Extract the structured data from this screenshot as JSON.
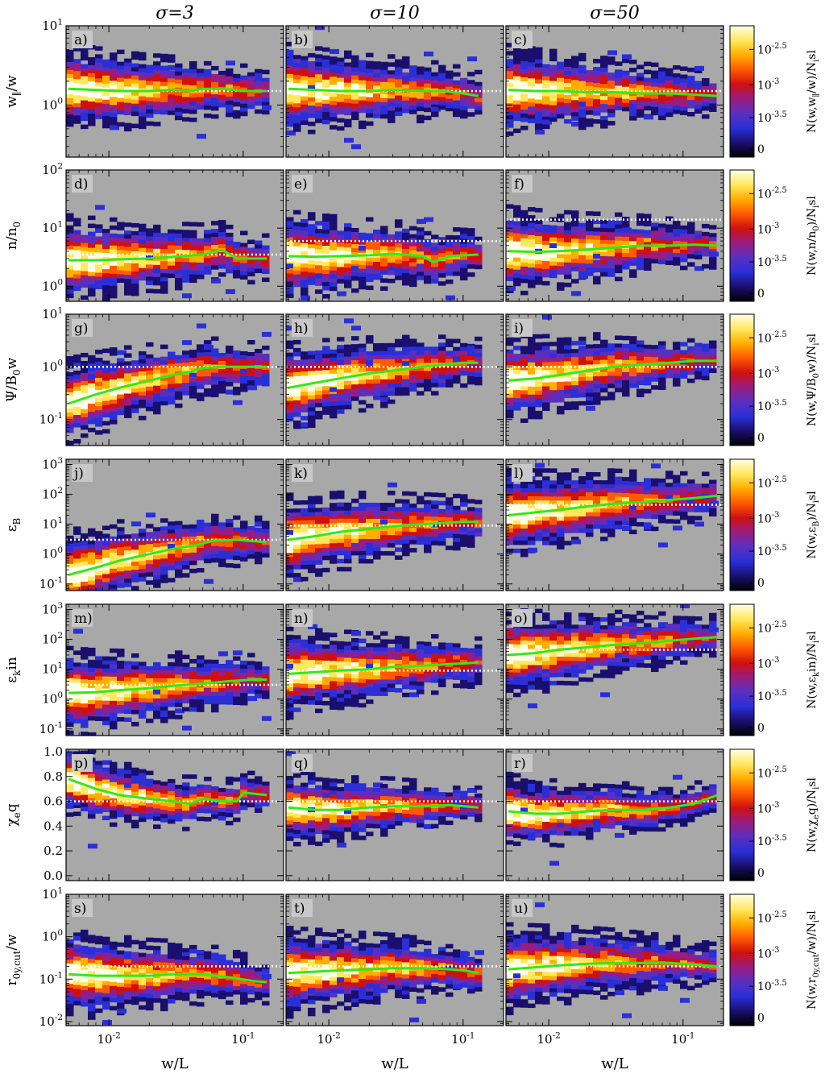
{
  "columns": [
    "σ=3",
    "σ=10",
    "σ=50"
  ],
  "xlabel": "w/L",
  "colorbar_ticks": [
    "10^{-2.5}",
    "10^{-3}",
    "10^{-3.5}",
    "0"
  ],
  "colors": {
    "panel_bg": "#a8a8a8",
    "median_line": "#33e81c",
    "reference_line": "#ffffff"
  },
  "colormap": [
    "#000000",
    "#1a0f6f",
    "#2a2fd8",
    "#5a2fbf",
    "#9a1c7e",
    "#d01010",
    "#ff5a00",
    "#ffae00",
    "#ffe860",
    "#ffffe8"
  ],
  "chart_data": {
    "type": "heatmap",
    "x_scale": "log",
    "xlim": [
      0.0048,
      0.2
    ],
    "x_ticks": [
      "10^{-2}",
      "10^{-1}"
    ],
    "rows": [
      {
        "ylabel": "w_∥/w",
        "cb_label": "N(w,w_∥/w)/N_isl",
        "y_scale": "log",
        "ylim": [
          0.22,
          10
        ],
        "y_ticks": [
          "10^{1}",
          "10^{0}"
        ],
        "panels": [
          {
            "letter": "a)",
            "ref": 1.5,
            "median": [
              [
                0.005,
                1.6
              ],
              [
                0.008,
                1.55
              ],
              [
                0.012,
                1.5
              ],
              [
                0.02,
                1.5
              ],
              [
                0.03,
                1.55
              ],
              [
                0.04,
                1.5
              ],
              [
                0.05,
                1.6
              ],
              [
                0.07,
                1.6
              ],
              [
                0.1,
                1.5
              ],
              [
                0.15,
                1.5
              ]
            ]
          },
          {
            "letter": "b)",
            "ref": 1.5,
            "median": [
              [
                0.005,
                1.6
              ],
              [
                0.008,
                1.55
              ],
              [
                0.012,
                1.5
              ],
              [
                0.02,
                1.5
              ],
              [
                0.03,
                1.55
              ],
              [
                0.05,
                1.5
              ],
              [
                0.07,
                1.5
              ],
              [
                0.1,
                1.4
              ],
              [
                0.13,
                1.3
              ]
            ]
          },
          {
            "letter": "c)",
            "ref": 1.5,
            "median": [
              [
                0.005,
                1.55
              ],
              [
                0.008,
                1.5
              ],
              [
                0.012,
                1.5
              ],
              [
                0.02,
                1.45
              ],
              [
                0.03,
                1.45
              ],
              [
                0.05,
                1.4
              ],
              [
                0.08,
                1.4
              ],
              [
                0.12,
                1.35
              ],
              [
                0.18,
                1.3
              ]
            ]
          }
        ]
      },
      {
        "ylabel": "n/n_0",
        "cb_label": "N(w,n/n_0)/N_isl",
        "y_scale": "log",
        "ylim": [
          0.55,
          100
        ],
        "y_ticks": [
          "10^{2}",
          "10^{1}",
          "10^{0}"
        ],
        "panels": [
          {
            "letter": "d)",
            "ref": 3.5,
            "median": [
              [
                0.005,
                2.8
              ],
              [
                0.008,
                2.8
              ],
              [
                0.012,
                2.9
              ],
              [
                0.02,
                3.0
              ],
              [
                0.03,
                3.2
              ],
              [
                0.05,
                3.5
              ],
              [
                0.07,
                4.2
              ],
              [
                0.09,
                3.0
              ],
              [
                0.12,
                3.0
              ],
              [
                0.15,
                3.0
              ]
            ]
          },
          {
            "letter": "e)",
            "ref": 6.0,
            "median": [
              [
                0.005,
                3.3
              ],
              [
                0.008,
                3.2
              ],
              [
                0.012,
                3.3
              ],
              [
                0.02,
                3.4
              ],
              [
                0.03,
                3.6
              ],
              [
                0.05,
                3.3
              ],
              [
                0.06,
                2.6
              ],
              [
                0.08,
                3.3
              ],
              [
                0.1,
                3.4
              ],
              [
                0.13,
                3.5
              ]
            ]
          },
          {
            "letter": "f)",
            "ref": 14.0,
            "median": [
              [
                0.005,
                4.0
              ],
              [
                0.008,
                3.9
              ],
              [
                0.012,
                4.0
              ],
              [
                0.02,
                4.3
              ],
              [
                0.03,
                4.6
              ],
              [
                0.05,
                5.0
              ],
              [
                0.08,
                5.0
              ],
              [
                0.12,
                5.2
              ],
              [
                0.18,
                5.0
              ]
            ]
          }
        ]
      },
      {
        "ylabel": "Ψ/B_0w",
        "cb_label": "N(w,Ψ/B_0w)/N_isl",
        "y_scale": "log",
        "ylim": [
          0.032,
          10
        ],
        "y_ticks": [
          "10^{1}",
          "10^{0}",
          "10^{-1}"
        ],
        "panels": [
          {
            "letter": "g)",
            "ref": 1.0,
            "median": [
              [
                0.005,
                0.2
              ],
              [
                0.008,
                0.3
              ],
              [
                0.012,
                0.4
              ],
              [
                0.02,
                0.55
              ],
              [
                0.03,
                0.7
              ],
              [
                0.04,
                0.8
              ],
              [
                0.05,
                0.95
              ],
              [
                0.07,
                1.0
              ],
              [
                0.1,
                1.0
              ],
              [
                0.15,
                1.0
              ]
            ]
          },
          {
            "letter": "h)",
            "ref": 1.0,
            "median": [
              [
                0.005,
                0.4
              ],
              [
                0.008,
                0.5
              ],
              [
                0.012,
                0.6
              ],
              [
                0.02,
                0.75
              ],
              [
                0.03,
                0.85
              ],
              [
                0.05,
                1.0
              ],
              [
                0.07,
                1.1
              ],
              [
                0.1,
                1.2
              ],
              [
                0.13,
                1.2
              ]
            ]
          },
          {
            "letter": "i)",
            "ref": 1.0,
            "median": [
              [
                0.005,
                0.55
              ],
              [
                0.008,
                0.6
              ],
              [
                0.012,
                0.7
              ],
              [
                0.02,
                0.85
              ],
              [
                0.03,
                1.0
              ],
              [
                0.05,
                1.1
              ],
              [
                0.08,
                1.2
              ],
              [
                0.12,
                1.3
              ],
              [
                0.18,
                1.3
              ]
            ]
          }
        ]
      },
      {
        "ylabel": "ε_B",
        "cb_label": "N(w,ε_B)/N_isl",
        "y_scale": "log",
        "ylim": [
          0.06,
          1500
        ],
        "y_ticks": [
          "10^{3}",
          "10^{2}",
          "10^{1}",
          "10^{0}",
          "10^{-1}"
        ],
        "panels": [
          {
            "letter": "j)",
            "ref": 3.0,
            "median": [
              [
                0.005,
                0.2
              ],
              [
                0.008,
                0.35
              ],
              [
                0.012,
                0.6
              ],
              [
                0.02,
                1.0
              ],
              [
                0.03,
                1.5
              ],
              [
                0.045,
                2.0
              ],
              [
                0.06,
                2.8
              ],
              [
                0.09,
                3.0
              ],
              [
                0.15,
                2.5
              ]
            ]
          },
          {
            "letter": "k)",
            "ref": 9.0,
            "median": [
              [
                0.005,
                3.0
              ],
              [
                0.008,
                4.0
              ],
              [
                0.012,
                5.5
              ],
              [
                0.02,
                7.0
              ],
              [
                0.03,
                8.5
              ],
              [
                0.05,
                10
              ],
              [
                0.07,
                11
              ],
              [
                0.1,
                12
              ],
              [
                0.13,
                12
              ]
            ]
          },
          {
            "letter": "l)",
            "ref": 45.0,
            "median": [
              [
                0.005,
                20
              ],
              [
                0.008,
                25
              ],
              [
                0.012,
                30
              ],
              [
                0.02,
                40
              ],
              [
                0.03,
                48
              ],
              [
                0.05,
                55
              ],
              [
                0.08,
                65
              ],
              [
                0.12,
                75
              ],
              [
                0.18,
                90
              ]
            ]
          }
        ]
      },
      {
        "ylabel": "ε_kin",
        "cb_label": "N(w,ε_kin)/N_isl",
        "y_scale": "log",
        "ylim": [
          0.06,
          1500
        ],
        "y_ticks": [
          "10^{3}",
          "10^{2}",
          "10^{1}",
          "10^{0}",
          "10^{-1}"
        ],
        "panels": [
          {
            "letter": "m)",
            "ref": 3.0,
            "median": [
              [
                0.005,
                1.6
              ],
              [
                0.008,
                1.7
              ],
              [
                0.012,
                2.0
              ],
              [
                0.02,
                2.3
              ],
              [
                0.03,
                2.8
              ],
              [
                0.05,
                3.3
              ],
              [
                0.08,
                4.0
              ],
              [
                0.12,
                4.5
              ],
              [
                0.15,
                4.5
              ]
            ]
          },
          {
            "letter": "n)",
            "ref": 9.0,
            "median": [
              [
                0.005,
                7
              ],
              [
                0.008,
                8
              ],
              [
                0.012,
                9
              ],
              [
                0.02,
                10
              ],
              [
                0.03,
                12
              ],
              [
                0.05,
                13
              ],
              [
                0.08,
                15
              ],
              [
                0.11,
                16
              ],
              [
                0.13,
                17
              ]
            ]
          },
          {
            "letter": "o)",
            "ref": 45.0,
            "median": [
              [
                0.005,
                30
              ],
              [
                0.008,
                35
              ],
              [
                0.012,
                45
              ],
              [
                0.02,
                55
              ],
              [
                0.03,
                65
              ],
              [
                0.05,
                75
              ],
              [
                0.08,
                90
              ],
              [
                0.12,
                105
              ],
              [
                0.18,
                120
              ]
            ]
          }
        ]
      },
      {
        "ylabel": "χ_eq",
        "cb_label": "N(w,χ_eq)/N_isl",
        "y_scale": "linear",
        "ylim": [
          -0.04,
          1.02
        ],
        "y_ticks": [
          "1.0",
          "0.8",
          "0.6",
          "0.4",
          "0.2",
          "0.0"
        ],
        "y_tick_values": [
          1.0,
          0.8,
          0.6,
          0.4,
          0.2,
          0.0
        ],
        "panels": [
          {
            "letter": "p)",
            "ref": 0.6,
            "median": [
              [
                0.005,
                0.78
              ],
              [
                0.008,
                0.7
              ],
              [
                0.012,
                0.65
              ],
              [
                0.02,
                0.62
              ],
              [
                0.03,
                0.6
              ],
              [
                0.04,
                0.58
              ],
              [
                0.05,
                0.62
              ],
              [
                0.07,
                0.6
              ],
              [
                0.09,
                0.6
              ],
              [
                0.1,
                0.67
              ],
              [
                0.15,
                0.65
              ]
            ]
          },
          {
            "letter": "q)",
            "ref": 0.6,
            "median": [
              [
                0.005,
                0.55
              ],
              [
                0.008,
                0.53
              ],
              [
                0.012,
                0.53
              ],
              [
                0.02,
                0.55
              ],
              [
                0.03,
                0.56
              ],
              [
                0.05,
                0.56
              ],
              [
                0.08,
                0.57
              ],
              [
                0.13,
                0.55
              ]
            ]
          },
          {
            "letter": "r)",
            "ref": 0.6,
            "median": [
              [
                0.005,
                0.52
              ],
              [
                0.008,
                0.5
              ],
              [
                0.012,
                0.5
              ],
              [
                0.02,
                0.52
              ],
              [
                0.03,
                0.53
              ],
              [
                0.05,
                0.53
              ],
              [
                0.08,
                0.55
              ],
              [
                0.12,
                0.58
              ],
              [
                0.18,
                0.65
              ]
            ]
          }
        ]
      },
      {
        "ylabel": "r_{0y,cut}/w",
        "cb_label": "N(w,r_{0y,cut}/w)/N_isl",
        "y_scale": "log",
        "ylim": [
          0.008,
          10
        ],
        "y_ticks": [
          "10^{1}",
          "10^{0}",
          "10^{-1}",
          "10^{-2}"
        ],
        "panels": [
          {
            "letter": "s)",
            "ref": 0.2,
            "median": [
              [
                0.005,
                0.13
              ],
              [
                0.008,
                0.12
              ],
              [
                0.012,
                0.12
              ],
              [
                0.02,
                0.12
              ],
              [
                0.03,
                0.13
              ],
              [
                0.05,
                0.13
              ],
              [
                0.08,
                0.11
              ],
              [
                0.12,
                0.09
              ],
              [
                0.15,
                0.085
              ]
            ]
          },
          {
            "letter": "t)",
            "ref": 0.2,
            "median": [
              [
                0.005,
                0.14
              ],
              [
                0.008,
                0.15
              ],
              [
                0.012,
                0.16
              ],
              [
                0.02,
                0.17
              ],
              [
                0.03,
                0.18
              ],
              [
                0.05,
                0.18
              ],
              [
                0.08,
                0.17
              ],
              [
                0.1,
                0.16
              ],
              [
                0.13,
                0.14
              ]
            ]
          },
          {
            "letter": "u)",
            "ref": 0.2,
            "median": [
              [
                0.005,
                0.17
              ],
              [
                0.008,
                0.19
              ],
              [
                0.012,
                0.21
              ],
              [
                0.02,
                0.23
              ],
              [
                0.03,
                0.24
              ],
              [
                0.05,
                0.24
              ],
              [
                0.08,
                0.24
              ],
              [
                0.12,
                0.22
              ],
              [
                0.18,
                0.2
              ]
            ]
          }
        ]
      }
    ]
  }
}
